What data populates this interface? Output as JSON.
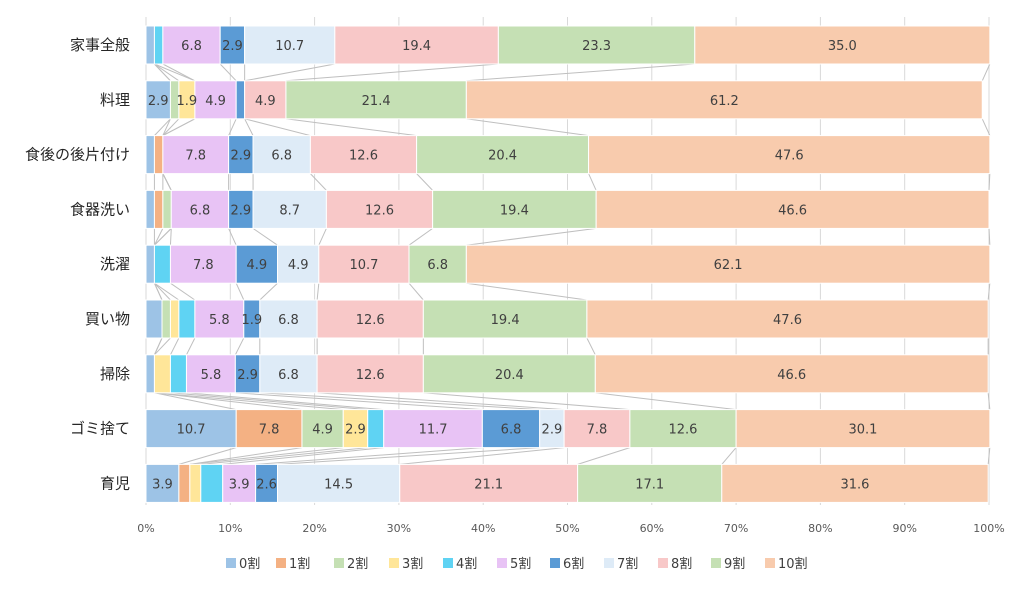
{
  "chart_data": {
    "type": "bar",
    "orientation": "horizontal",
    "stacked": "percent",
    "title": "",
    "xlabel": "",
    "ylabel": "",
    "xlim": [
      0,
      100
    ],
    "x_ticks": [
      "0%",
      "10%",
      "20%",
      "30%",
      "40%",
      "50%",
      "60%",
      "70%",
      "80%",
      "90%",
      "100%"
    ],
    "grid": true,
    "legend_position": "bottom",
    "categories": [
      "家事全般",
      "料理",
      "食後の後片付け",
      "食器洗い",
      "洗濯",
      "買い物",
      "掃除",
      "ゴミ捨て",
      "育児"
    ],
    "series": [
      {
        "name": "0割",
        "color": "#9dc3e6",
        "values": [
          1.0,
          2.9,
          1.0,
          1.0,
          1.0,
          1.9,
          1.0,
          10.7,
          3.9
        ]
      },
      {
        "name": "1割",
        "color": "#f4b183",
        "values": [
          0,
          0,
          1.0,
          1.0,
          0,
          0,
          0,
          7.8,
          1.3
        ]
      },
      {
        "name": "2割",
        "color": "#c5e0b4",
        "values": [
          0,
          1.0,
          0,
          1.0,
          0,
          1.0,
          0,
          4.9,
          0
        ]
      },
      {
        "name": "3割",
        "color": "#ffe699",
        "values": [
          0,
          1.9,
          0,
          0,
          0,
          1.0,
          1.9,
          2.9,
          1.3
        ]
      },
      {
        "name": "4割",
        "color": "#5fd3f3",
        "values": [
          1.0,
          0,
          0,
          0,
          1.9,
          1.9,
          1.9,
          1.9,
          2.6
        ]
      },
      {
        "name": "5割",
        "color": "#e8c3f5",
        "values": [
          6.8,
          4.9,
          7.8,
          6.8,
          7.8,
          5.8,
          5.8,
          11.7,
          3.9
        ]
      },
      {
        "name": "6割",
        "color": "#5b9bd5",
        "values": [
          2.9,
          1.0,
          2.9,
          2.9,
          4.9,
          1.9,
          2.9,
          6.8,
          2.6
        ]
      },
      {
        "name": "7割",
        "color": "#deebf7",
        "values": [
          10.7,
          0,
          6.8,
          8.7,
          4.9,
          6.8,
          6.8,
          2.9,
          14.5
        ]
      },
      {
        "name": "8割",
        "color": "#f8c8c8",
        "values": [
          19.4,
          4.9,
          12.6,
          12.6,
          10.7,
          12.6,
          12.6,
          7.8,
          21.1
        ]
      },
      {
        "name": "9割",
        "color": "#c5e0b4",
        "values": [
          23.3,
          21.4,
          20.4,
          19.4,
          6.8,
          19.4,
          20.4,
          12.6,
          17.1
        ]
      },
      {
        "name": "10割",
        "color": "#f8cbad",
        "values": [
          35.0,
          61.2,
          47.6,
          46.6,
          62.1,
          47.6,
          46.6,
          30.1,
          31.6
        ]
      }
    ],
    "data_labels": [
      [
        "",
        "",
        "",
        "",
        "",
        "6.8",
        "2.9",
        "10.7",
        "19.4",
        "23.3",
        "35.0"
      ],
      [
        "2.9",
        "",
        "",
        "1.9",
        "",
        "4.9",
        "",
        "",
        "4.9",
        "21.4",
        "61.2"
      ],
      [
        "",
        "",
        "",
        "",
        "",
        "7.8",
        "2.9",
        "6.8",
        "12.6",
        "20.4",
        "47.6"
      ],
      [
        "",
        "",
        "",
        "",
        "",
        "6.8",
        "2.9",
        "8.7",
        "12.6",
        "19.4",
        "46.6"
      ],
      [
        "",
        "",
        "",
        "",
        "",
        "7.8",
        "4.9",
        "4.9",
        "10.7",
        "6.8",
        "62.1"
      ],
      [
        "",
        "",
        "",
        "",
        "",
        "5.8",
        "1.9",
        "6.8",
        "12.6",
        "19.4",
        "47.6"
      ],
      [
        "",
        "",
        "",
        "",
        "",
        "5.8",
        "2.9",
        "6.8",
        "12.6",
        "20.4",
        "46.6"
      ],
      [
        "10.7",
        "7.8",
        "4.9",
        "2.9",
        "",
        "11.7",
        "6.8",
        "2.9",
        "7.8",
        "12.6",
        "30.1"
      ],
      [
        "3.9",
        "",
        "",
        "",
        "",
        "3.9",
        "2.6",
        "14.5",
        "21.1",
        "17.1",
        "31.6"
      ]
    ],
    "series_lines": true
  }
}
